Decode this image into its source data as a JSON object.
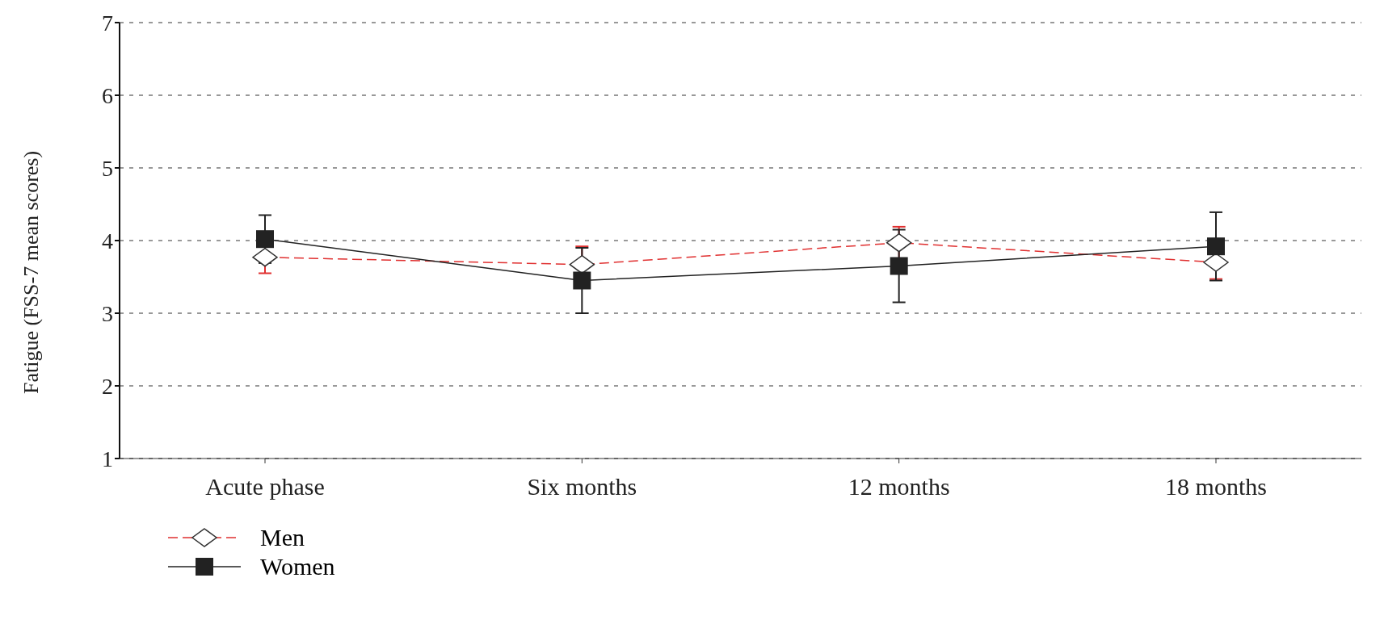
{
  "chart_data": {
    "type": "line",
    "ylabel": "Fatigue (FSS-7 mean scores)",
    "categories": [
      "Acute phase",
      "Six months",
      "12 months",
      "18 months"
    ],
    "series": [
      {
        "name": "Men",
        "color": "#e03030",
        "values": [
          3.77,
          3.67,
          3.97,
          3.7
        ],
        "errors": [
          0.22,
          0.25,
          0.22,
          0.23
        ],
        "marker": "diamond",
        "line_style": "dashed"
      },
      {
        "name": "Women",
        "color": "#222222",
        "values": [
          4.02,
          3.45,
          3.65,
          3.92
        ],
        "errors": [
          0.33,
          0.45,
          0.5,
          0.47
        ],
        "marker": "square",
        "line_style": "solid"
      }
    ],
    "ylim": [
      1,
      7
    ],
    "yticks": [
      1,
      2,
      3,
      4,
      5,
      6,
      7
    ],
    "grid": "y",
    "legend": "bottom left"
  }
}
